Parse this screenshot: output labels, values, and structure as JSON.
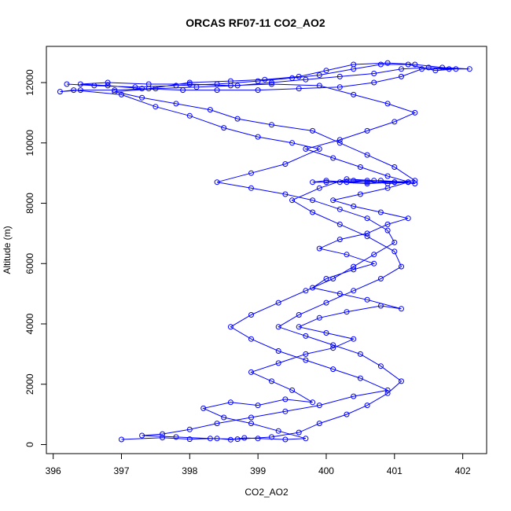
{
  "chart_data": {
    "type": "scatter",
    "title": "ORCAS RF07-11 CO2_AO2",
    "xlabel": "CO2_AO2",
    "ylabel": "Altitude (m)",
    "xlim": [
      395.9,
      402.35
    ],
    "ylim": [
      -300,
      13200
    ],
    "xticks": [
      396,
      397,
      398,
      399,
      400,
      401,
      402
    ],
    "yticks": [
      0,
      2000,
      4000,
      6000,
      8000,
      10000,
      12000
    ],
    "grid": false,
    "legend": "none",
    "marker": "open-circle",
    "connected": true,
    "colors": {
      "series": "#0000ff",
      "axes": "#000000",
      "background": "#ffffff"
    },
    "series": [
      {
        "points": [
          [
            397.0,
            170
          ],
          [
            397.6,
            230
          ],
          [
            398.0,
            180
          ],
          [
            398.4,
            200
          ],
          [
            398.6,
            160
          ],
          [
            398.8,
            220
          ],
          [
            399.0,
            200
          ],
          [
            399.4,
            170
          ],
          [
            399.7,
            200
          ],
          [
            399.3,
            450
          ],
          [
            398.9,
            700
          ],
          [
            398.5,
            900
          ],
          [
            398.2,
            1200
          ],
          [
            398.6,
            1400
          ],
          [
            399.0,
            1300
          ],
          [
            399.4,
            1500
          ],
          [
            399.8,
            1400
          ],
          [
            399.5,
            1800
          ],
          [
            399.2,
            2100
          ],
          [
            398.9,
            2400
          ],
          [
            399.3,
            2700
          ],
          [
            399.7,
            3000
          ],
          [
            400.1,
            3200
          ],
          [
            400.4,
            3500
          ],
          [
            400.0,
            3700
          ],
          [
            399.6,
            3900
          ],
          [
            399.9,
            4200
          ],
          [
            400.3,
            4400
          ],
          [
            400.8,
            4600
          ],
          [
            401.1,
            4500
          ],
          [
            400.6,
            4800
          ],
          [
            400.2,
            5000
          ],
          [
            399.8,
            5200
          ],
          [
            400.0,
            5500
          ],
          [
            400.4,
            5800
          ],
          [
            400.7,
            6000
          ],
          [
            400.3,
            6300
          ],
          [
            399.9,
            6500
          ],
          [
            400.2,
            6800
          ],
          [
            400.6,
            7000
          ],
          [
            400.9,
            7300
          ],
          [
            401.2,
            7500
          ],
          [
            400.8,
            7700
          ],
          [
            400.4,
            7900
          ],
          [
            400.1,
            8100
          ],
          [
            400.5,
            8300
          ],
          [
            400.9,
            8500
          ],
          [
            401.2,
            8700
          ],
          [
            400.8,
            8750
          ],
          [
            400.4,
            8750
          ],
          [
            400.0,
            8700
          ],
          [
            400.6,
            8700
          ],
          [
            401.0,
            8700
          ],
          [
            401.3,
            8650
          ],
          [
            400.9,
            8900
          ],
          [
            400.5,
            9200
          ],
          [
            400.1,
            9500
          ],
          [
            399.7,
            9800
          ],
          [
            400.2,
            10100
          ],
          [
            400.6,
            10400
          ],
          [
            401.0,
            10700
          ],
          [
            401.3,
            11000
          ],
          [
            400.9,
            11300
          ],
          [
            400.4,
            11600
          ],
          [
            399.9,
            11900
          ],
          [
            399.2,
            11950
          ],
          [
            398.6,
            11900
          ],
          [
            398.0,
            11950
          ],
          [
            397.4,
            11950
          ],
          [
            396.8,
            12000
          ],
          [
            396.4,
            11950
          ],
          [
            396.8,
            11900
          ],
          [
            397.3,
            11800
          ],
          [
            397.9,
            11750
          ],
          [
            398.4,
            11750
          ],
          [
            399.0,
            11750
          ],
          [
            399.6,
            11800
          ],
          [
            400.2,
            11850
          ],
          [
            400.7,
            12000
          ],
          [
            401.1,
            12200
          ],
          [
            401.4,
            12450
          ],
          [
            401.8,
            12450
          ],
          [
            402.1,
            12450
          ],
          [
            401.7,
            12500
          ],
          [
            401.3,
            12600
          ],
          [
            400.9,
            12650
          ],
          [
            400.4,
            12600
          ],
          [
            400.0,
            12400
          ],
          [
            399.6,
            12200
          ],
          [
            399.1,
            12100
          ],
          [
            398.6,
            12050
          ],
          [
            398.0,
            12000
          ],
          [
            397.4,
            11800
          ],
          [
            396.9,
            11750
          ],
          [
            396.4,
            11750
          ],
          [
            396.1,
            11700
          ],
          [
            396.3,
            11750
          ],
          [
            397.0,
            11600
          ],
          [
            397.5,
            11200
          ],
          [
            398.0,
            10900
          ],
          [
            398.5,
            10500
          ],
          [
            399.0,
            10200
          ],
          [
            399.5,
            10000
          ],
          [
            399.9,
            9800
          ],
          [
            399.4,
            9300
          ],
          [
            398.9,
            9000
          ],
          [
            398.4,
            8700
          ],
          [
            398.9,
            8500
          ],
          [
            399.4,
            8300
          ],
          [
            399.8,
            8100
          ],
          [
            400.2,
            7800
          ],
          [
            400.6,
            7500
          ],
          [
            400.9,
            7100
          ],
          [
            401.0,
            6700
          ],
          [
            400.7,
            6300
          ],
          [
            400.4,
            5900
          ],
          [
            400.1,
            5500
          ],
          [
            399.7,
            5100
          ],
          [
            399.3,
            4700
          ],
          [
            398.9,
            4300
          ],
          [
            398.6,
            3900
          ],
          [
            398.9,
            3500
          ],
          [
            399.3,
            3100
          ],
          [
            399.7,
            2800
          ],
          [
            400.1,
            2500
          ],
          [
            400.5,
            2200
          ],
          [
            400.9,
            1800
          ],
          [
            400.4,
            1600
          ],
          [
            399.9,
            1300
          ],
          [
            399.4,
            1100
          ],
          [
            398.9,
            900
          ],
          [
            398.4,
            700
          ],
          [
            398.0,
            500
          ],
          [
            397.6,
            350
          ],
          [
            397.3,
            300
          ],
          [
            397.8,
            250
          ],
          [
            398.3,
            200
          ],
          [
            398.7,
            180
          ],
          [
            399.2,
            250
          ],
          [
            399.6,
            400
          ],
          [
            399.9,
            700
          ],
          [
            400.3,
            1000
          ],
          [
            400.6,
            1300
          ],
          [
            400.9,
            1700
          ],
          [
            401.1,
            2100
          ],
          [
            400.8,
            2600
          ],
          [
            400.5,
            3000
          ],
          [
            400.1,
            3300
          ],
          [
            399.7,
            3600
          ],
          [
            399.3,
            3900
          ],
          [
            399.6,
            4300
          ],
          [
            400.0,
            4700
          ],
          [
            400.4,
            5100
          ],
          [
            400.8,
            5500
          ],
          [
            401.1,
            5900
          ],
          [
            401.0,
            6400
          ],
          [
            400.6,
            6900
          ],
          [
            400.2,
            7300
          ],
          [
            399.8,
            7700
          ],
          [
            399.5,
            8100
          ],
          [
            399.9,
            8500
          ],
          [
            400.3,
            8800
          ],
          [
            400.7,
            8750
          ],
          [
            401.0,
            8700
          ],
          [
            401.2,
            8700
          ],
          [
            400.9,
            8650
          ],
          [
            400.6,
            8750
          ],
          [
            400.3,
            8700
          ],
          [
            400.0,
            8750
          ],
          [
            399.8,
            8700
          ],
          [
            400.2,
            8700
          ],
          [
            400.6,
            8650
          ],
          [
            401.0,
            8700
          ],
          [
            401.3,
            8750
          ],
          [
            401.0,
            9200
          ],
          [
            400.6,
            9600
          ],
          [
            400.2,
            10000
          ],
          [
            399.8,
            10400
          ],
          [
            399.2,
            10600
          ],
          [
            398.7,
            10800
          ],
          [
            398.3,
            11100
          ],
          [
            397.8,
            11300
          ],
          [
            397.3,
            11500
          ],
          [
            396.9,
            11700
          ],
          [
            397.5,
            11800
          ],
          [
            398.1,
            11850
          ],
          [
            398.7,
            11900
          ],
          [
            399.2,
            12000
          ],
          [
            399.7,
            12100
          ],
          [
            400.2,
            12200
          ],
          [
            400.7,
            12300
          ],
          [
            401.1,
            12450
          ],
          [
            401.5,
            12500
          ],
          [
            401.9,
            12450
          ],
          [
            401.6,
            12400
          ],
          [
            401.2,
            12600
          ],
          [
            400.8,
            12600
          ],
          [
            400.4,
            12450
          ],
          [
            399.9,
            12250
          ],
          [
            399.5,
            12150
          ],
          [
            399.0,
            12050
          ],
          [
            398.4,
            11950
          ],
          [
            397.8,
            11900
          ],
          [
            397.2,
            11850
          ],
          [
            396.6,
            11900
          ],
          [
            396.2,
            11950
          ]
        ]
      }
    ]
  }
}
